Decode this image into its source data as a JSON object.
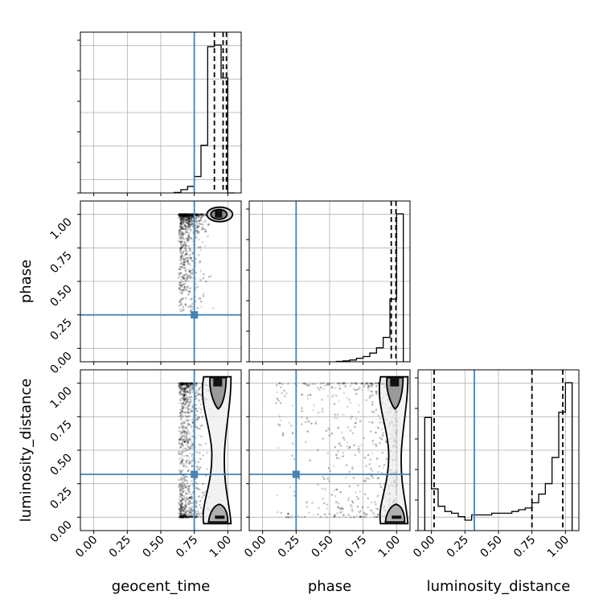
{
  "chart_data": {
    "type": "corner",
    "parameters": [
      "geocent_time",
      "phase",
      "luminosity_distance"
    ],
    "labels": {
      "geocent_time": "geocent_time",
      "phase": "phase",
      "luminosity_distance": "luminosity_distance"
    },
    "axis_range": [
      -0.1,
      1.1
    ],
    "ticks": [
      0.0,
      0.25,
      0.5,
      0.75,
      1.0
    ],
    "tick_labels": [
      "0.00",
      "0.25",
      "0.50",
      "0.75",
      "1.00"
    ],
    "grid": true,
    "truths": {
      "geocent_time": 0.75,
      "phase": 0.25,
      "luminosity_distance": 0.32
    },
    "truth_color": "#4682b4",
    "quantiles": {
      "geocent_time": [
        0.9,
        0.965,
        0.99
      ],
      "phase": [
        0.96,
        0.995
      ],
      "luminosity_distance": [
        0.02,
        0.75,
        0.98
      ]
    },
    "histograms": {
      "geocent_time": {
        "bin_edges": [
          0.6,
          0.65,
          0.7,
          0.75,
          0.8,
          0.85,
          0.9,
          0.95,
          1.0,
          1.05
        ],
        "counts": [
          0.003,
          0.02,
          0.04,
          0.1,
          0.29,
          0.89,
          0.9,
          0.7,
          0.0
        ]
      },
      "phase": {
        "bin_edges": [
          0.55,
          0.6,
          0.65,
          0.7,
          0.75,
          0.8,
          0.85,
          0.9,
          0.95,
          1.0,
          1.05
        ],
        "counts": [
          0.002,
          0.005,
          0.01,
          0.02,
          0.03,
          0.05,
          0.08,
          0.14,
          0.36,
          0.85
        ]
      },
      "luminosity_distance": {
        "bin_edges": [
          -0.05,
          0.0,
          0.05,
          0.1,
          0.15,
          0.2,
          0.25,
          0.3,
          0.35,
          0.4,
          0.45,
          0.5,
          0.55,
          0.6,
          0.65,
          0.7,
          0.75,
          0.8,
          0.85,
          0.9,
          0.95,
          1.0,
          1.05
        ],
        "counts": [
          0.65,
          0.24,
          0.14,
          0.11,
          0.1,
          0.08,
          0.06,
          0.09,
          0.09,
          0.09,
          0.1,
          0.1,
          0.1,
          0.11,
          0.12,
          0.13,
          0.16,
          0.21,
          0.27,
          0.42,
          0.68,
          0.85
        ]
      }
    },
    "scatter_color": "#000000",
    "contour_color": "#000000"
  }
}
